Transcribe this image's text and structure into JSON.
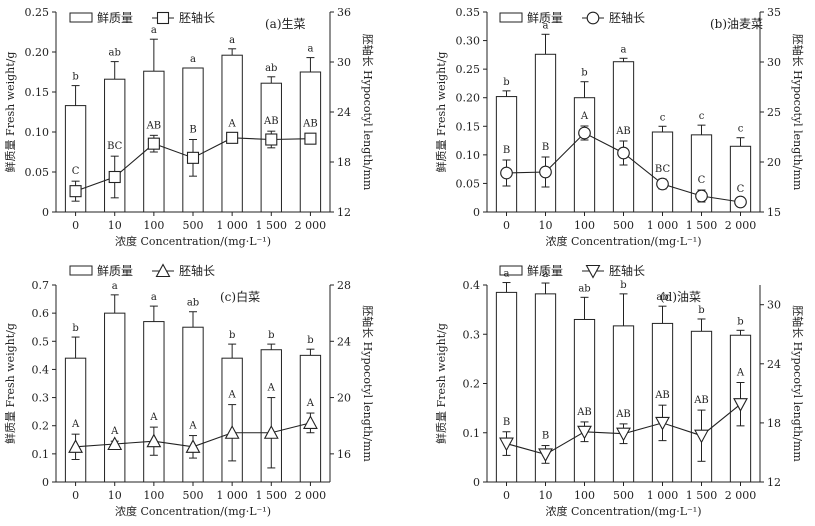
{
  "legend": {
    "bar_label": "鲜质量",
    "line_label": "胚轴长"
  },
  "chart_data": [
    {
      "type": "bar",
      "title": "(a)生菜",
      "xlabel": "浓度 Concentration/(mg·L⁻¹)",
      "ylabel": "鲜质量 Fresh weight/g",
      "y2label": "胚轴长 Hypocotyl length/mm",
      "categories": [
        "0",
        "10",
        "100",
        "500",
        "1 000",
        "1 500",
        "2 000"
      ],
      "ylim": [
        0,
        0.25
      ],
      "yticks": [
        "0",
        "0.05",
        "0.10",
        "0.15",
        "0.20",
        "0.25"
      ],
      "y2lim": [
        12,
        36
      ],
      "y2ticks": [
        "12",
        "18",
        "24",
        "30",
        "36"
      ],
      "marker": "square",
      "series": [
        {
          "name": "鲜质量",
          "values": [
            0.133,
            0.166,
            0.176,
            0.18,
            0.196,
            0.161,
            0.175
          ],
          "errors": [
            0.025,
            0.022,
            0.04,
            0.0,
            0.008,
            0.008,
            0.018
          ],
          "significance": [
            "b",
            "ab",
            "a",
            "a",
            "a",
            "ab",
            "a"
          ]
        },
        {
          "name": "胚轴长",
          "values": [
            14.5,
            16.2,
            20.2,
            18.5,
            20.9,
            20.7,
            20.8
          ],
          "errors": [
            1.2,
            2.5,
            1.0,
            2.2,
            0.5,
            1.0,
            0.6
          ],
          "significance": [
            "C",
            "BC",
            "AB",
            "B",
            "A",
            "AB",
            "AB"
          ]
        }
      ]
    },
    {
      "type": "bar",
      "title": "(b)油麦菜",
      "xlabel": "浓度 Concentration/(mg·L⁻¹)",
      "ylabel": "鲜质量 Fresh weight/g",
      "y2label": "胚轴长 Hypocotyl length/mm",
      "categories": [
        "0",
        "10",
        "100",
        "500",
        "1 000",
        "1 500",
        "2 000"
      ],
      "ylim": [
        0,
        0.35
      ],
      "yticks": [
        "0",
        "0.05",
        "0.10",
        "0.15",
        "0.20",
        "0.25",
        "0.30",
        "0.35"
      ],
      "y2lim": [
        15,
        35
      ],
      "y2ticks": [
        "15",
        "20",
        "25",
        "30",
        "35"
      ],
      "marker": "circle",
      "series": [
        {
          "name": "鲜质量",
          "values": [
            0.202,
            0.276,
            0.2,
            0.263,
            0.14,
            0.135,
            0.115
          ],
          "errors": [
            0.01,
            0.035,
            0.028,
            0.006,
            0.01,
            0.017,
            0.015
          ],
          "significance": [
            "b",
            "a",
            "b",
            "a",
            "c",
            "c",
            "c"
          ]
        },
        {
          "name": "胚轴长",
          "values": [
            18.9,
            19.0,
            22.9,
            20.9,
            17.8,
            16.6,
            16.0
          ],
          "errors": [
            1.3,
            1.5,
            0.7,
            1.2,
            0.5,
            0.6,
            0.3
          ],
          "significance": [
            "B",
            "B",
            "A",
            "AB",
            "BC",
            "C",
            "C"
          ]
        }
      ]
    },
    {
      "type": "bar",
      "title": "(c)白菜",
      "xlabel": "浓度 Concentration/(mg·L⁻¹)",
      "ylabel": "鲜质量 Fresh weight/g",
      "y2label": "胚轴长 Hypocotyl length/mm",
      "categories": [
        "0",
        "10",
        "100",
        "500",
        "1 000",
        "1 500",
        "2 000"
      ],
      "ylim": [
        0,
        0.7
      ],
      "yticks": [
        "0",
        "0.1",
        "0.2",
        "0.3",
        "0.4",
        "0.5",
        "0.6",
        "0.7"
      ],
      "y2lim": [
        14,
        28
      ],
      "y2ticks": [
        "16",
        "20",
        "24",
        "28"
      ],
      "marker": "triangle-up",
      "series": [
        {
          "name": "鲜质量",
          "values": [
            0.44,
            0.6,
            0.57,
            0.55,
            0.44,
            0.47,
            0.45
          ],
          "errors": [
            0.075,
            0.065,
            0.055,
            0.055,
            0.05,
            0.02,
            0.022
          ],
          "significance": [
            "b",
            "a",
            "a",
            "ab",
            "b",
            "b",
            "b"
          ]
        },
        {
          "name": "胚轴长",
          "values": [
            16.5,
            16.7,
            16.9,
            16.5,
            17.5,
            17.5,
            18.2
          ],
          "errors": [
            0.9,
            0.2,
            1.0,
            0.8,
            2.0,
            2.5,
            0.7
          ],
          "significance": [
            "A",
            "A",
            "A",
            "A",
            "A",
            "A",
            "A"
          ]
        }
      ]
    },
    {
      "type": "bar",
      "title": "(d)油菜",
      "xlabel": "浓度 Concentration/(mg·L⁻¹)",
      "ylabel": "鲜质量 Fresh weight/g",
      "y2label": "胚轴长 Hypocotyl length/mm",
      "categories": [
        "0",
        "10",
        "100",
        "500",
        "1 000",
        "1 500",
        "2 000"
      ],
      "ylim": [
        0,
        0.4
      ],
      "yticks": [
        "0",
        "0.1",
        "0.2",
        "0.3",
        "0.4"
      ],
      "y2lim": [
        12,
        32
      ],
      "y2ticks": [
        "12",
        "18",
        "24",
        "30"
      ],
      "marker": "triangle-down",
      "series": [
        {
          "name": "鲜质量",
          "values": [
            0.385,
            0.382,
            0.33,
            0.317,
            0.322,
            0.306,
            0.298
          ],
          "errors": [
            0.02,
            0.022,
            0.045,
            0.065,
            0.035,
            0.025,
            0.01
          ],
          "significance": [
            "a",
            "a",
            "ab",
            "b",
            "ab",
            "b",
            "b"
          ]
        },
        {
          "name": "胚轴长",
          "values": [
            15.9,
            14.8,
            17.1,
            16.9,
            18.0,
            16.7,
            19.9
          ],
          "errors": [
            1.2,
            0.9,
            1.0,
            1.0,
            1.8,
            2.6,
            2.2
          ],
          "significance": [
            "B",
            "B",
            "AB",
            "AB",
            "AB",
            "AB",
            "A"
          ]
        }
      ]
    }
  ]
}
